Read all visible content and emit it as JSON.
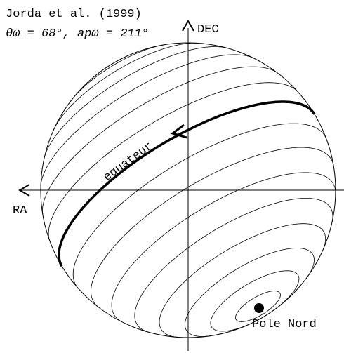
{
  "header": {
    "title": "Jorda et al. (1999)",
    "params": "θω = 68°, apω = 211°"
  },
  "axes": {
    "vertical": "DEC",
    "horizontal": "RA"
  },
  "labels": {
    "equator": "equateur",
    "pole": "Pole Nord"
  }
}
